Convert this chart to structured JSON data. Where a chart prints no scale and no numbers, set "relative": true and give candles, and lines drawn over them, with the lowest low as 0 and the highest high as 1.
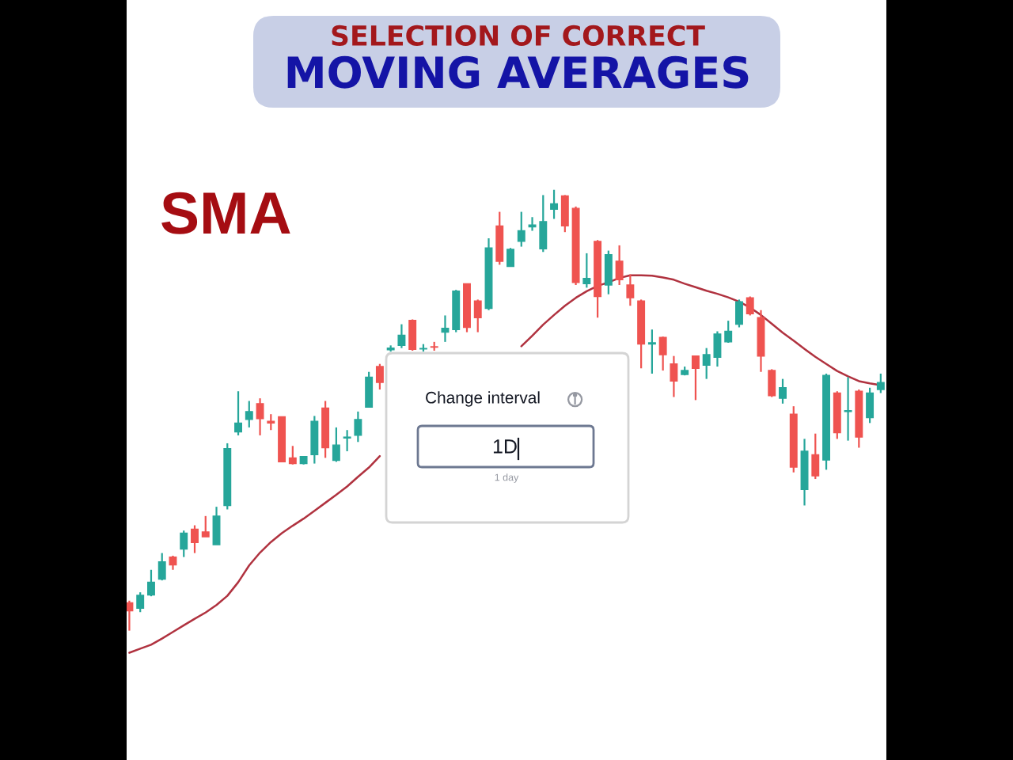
{
  "chart_data": {
    "type": "candlestick",
    "title": "SELECTION OF CORRECT",
    "subtitle": "MOVING AVERAGES",
    "annotations": [
      "SMA",
      "Change interval",
      "1D",
      "1 day"
    ],
    "relative": true,
    "categories": [
      null,
      null,
      null,
      null,
      null,
      null,
      null,
      null,
      null,
      null,
      null,
      null,
      null,
      null,
      null,
      null,
      null,
      null,
      null,
      null,
      null,
      null,
      null,
      null,
      null,
      null,
      null,
      null,
      null,
      null,
      null,
      null,
      null,
      null,
      null,
      null,
      null,
      null,
      null,
      null,
      null,
      null,
      null,
      null,
      null,
      null,
      null,
      null,
      null,
      null,
      null,
      null,
      null,
      null,
      null,
      null,
      null,
      null,
      null,
      null,
      null,
      null,
      null,
      null,
      null,
      null,
      null,
      null,
      null,
      null
    ],
    "ohlc": [
      [
        0.063,
        0.068,
        0,
        0.045
      ],
      [
        0.051,
        0.087,
        0.042,
        0.08
      ],
      [
        0.081,
        0.138,
        0.078,
        0.11
      ],
      [
        0.117,
        0.176,
        0.114,
        0.156
      ],
      [
        0.167,
        0.17,
        0.138,
        0.149
      ],
      [
        0.185,
        0.227,
        0.167,
        0.221
      ],
      [
        0.23,
        0.239,
        0.176,
        0.2
      ],
      [
        0.224,
        0.26,
        0.213,
        0.213
      ],
      [
        0.195,
        0.281,
        0.195,
        0.26
      ],
      [
        0.284,
        0.425,
        0.275,
        0.413
      ],
      [
        0.451,
        0.543,
        0.443,
        0.471
      ],
      [
        0.479,
        0.521,
        0.461,
        0.497
      ],
      [
        0.515,
        0.527,
        0.443,
        0.481
      ],
      [
        0.475,
        0.491,
        0.455,
        0.471
      ],
      [
        0.485,
        0.485,
        0.383,
        0.383
      ],
      [
        0.392,
        0.419,
        0.377,
        0.379
      ],
      [
        0.379,
        0.395,
        0.377,
        0.395
      ],
      [
        0.399,
        0.487,
        0.379,
        0.475
      ],
      [
        0.505,
        0.521,
        0.392,
        0.415
      ],
      [
        0.386,
        0.461,
        0.383,
        0.421
      ],
      [
        0.437,
        0.455,
        0.407,
        0.439
      ],
      [
        0.443,
        0.497,
        0.428,
        0.479
      ],
      [
        0.507,
        0.587,
        0.507,
        0.575
      ],
      [
        0.599,
        0.605,
        0.547,
        0.563
      ],
      [
        0.637,
        0.647,
        0.633,
        0.641
      ],
      [
        0.647,
        0.695,
        0.641,
        0.67
      ],
      [
        0.704,
        0.706,
        0.635,
        0.638
      ],
      [
        0.639,
        0.65,
        0.633,
        0.64
      ],
      [
        0.644,
        0.655,
        0.635,
        0.643
      ],
      [
        0.677,
        0.715,
        0.655,
        0.686
      ],
      [
        0.683,
        0.773,
        0.677,
        0.77
      ],
      [
        0.787,
        0.787,
        0.677,
        0.688
      ],
      [
        0.748,
        0.751,
        0.677,
        0.71
      ],
      [
        0.731,
        0.89,
        0.727,
        0.868
      ],
      [
        0.918,
        0.95,
        0.83,
        0.838
      ],
      [
        0.826,
        0.868,
        0.826,
        0.865
      ],
      [
        0.883,
        0.95,
        0.871,
        0.907
      ],
      [
        0.916,
        0.938,
        0.907,
        0.92
      ],
      [
        0.866,
        0.988,
        0.859,
        0.928
      ],
      [
        0.956,
        1,
        0.934,
        0.968
      ],
      [
        0.986,
        0.988,
        0.904,
        0.918
      ],
      [
        0.958,
        0.962,
        0.784,
        0.79
      ],
      [
        0.787,
        0.856,
        0.778,
        0.799
      ],
      [
        0.883,
        0.886,
        0.71,
        0.758
      ],
      [
        0.784,
        0.862,
        0.763,
        0.853
      ],
      [
        0.838,
        0.874,
        0.784,
        0.796
      ],
      [
        0.784,
        0.808,
        0.737,
        0.755
      ],
      [
        0.748,
        0.751,
        0.595,
        0.65
      ],
      [
        0.65,
        0.683,
        0.583,
        0.653
      ],
      [
        0.665,
        0.667,
        0.59,
        0.626
      ],
      [
        0.605,
        0.623,
        0.53,
        0.566
      ],
      [
        0.581,
        0.599,
        0.579,
        0.59
      ],
      [
        0.623,
        0.623,
        0.523,
        0.595
      ],
      [
        0.602,
        0.641,
        0.571,
        0.626
      ],
      [
        0.62,
        0.679,
        0.599,
        0.673
      ],
      [
        0.655,
        0.703,
        0.653,
        0.679
      ],
      [
        0.695,
        0.751,
        0.688,
        0.746
      ],
      [
        0.755,
        0.758,
        0.715,
        0.719
      ],
      [
        0.71,
        0.727,
        0.587,
        0.623
      ],
      [
        0.59,
        0.593,
        0.53,
        0.533
      ],
      [
        0.527,
        0.571,
        0.515,
        0.551
      ],
      [
        0.491,
        0.509,
        0.359,
        0.371
      ],
      [
        0.32,
        0.435,
        0.284,
        0.407
      ],
      [
        0.399,
        0.447,
        0.344,
        0.351
      ],
      [
        0.387,
        0.583,
        0.365,
        0.579
      ],
      [
        0.539,
        0.543,
        0.435,
        0.449
      ],
      [
        0.497,
        0.575,
        0.431,
        0.499
      ],
      [
        0.543,
        0.547,
        0.415,
        0.439
      ],
      [
        0.483,
        0.551,
        0.471,
        0.539
      ],
      [
        0.547,
        0.583,
        0.539,
        0.563
      ]
    ],
    "colors": [
      "#ef5350",
      "#26a69a",
      "#26a69a",
      "#26a69a",
      "#ef5350",
      "#26a69a",
      "#ef5350",
      "#ef5350",
      "#26a69a",
      "#26a69a",
      "#26a69a",
      "#26a69a",
      "#ef5350",
      "#ef5350",
      "#ef5350",
      "#ef5350",
      "#26a69a",
      "#26a69a",
      "#ef5350",
      "#26a69a",
      "#26a69a",
      "#26a69a",
      "#26a69a",
      "#ef5350",
      "#26a69a",
      "#26a69a",
      "#ef5350",
      "#26a69a",
      "#ef5350",
      "#26a69a",
      "#26a69a",
      "#ef5350",
      "#ef5350",
      "#26a69a",
      "#ef5350",
      "#26a69a",
      "#26a69a",
      "#26a69a",
      "#26a69a",
      "#26a69a",
      "#ef5350",
      "#ef5350",
      "#26a69a",
      "#ef5350",
      "#26a69a",
      "#ef5350",
      "#ef5350",
      "#ef5350",
      "#26a69a",
      "#ef5350",
      "#ef5350",
      "#26a69a",
      "#ef5350",
      "#26a69a",
      "#26a69a",
      "#26a69a",
      "#26a69a",
      "#ef5350",
      "#ef5350",
      "#ef5350",
      "#26a69a",
      "#ef5350",
      "#26a69a",
      "#ef5350",
      "#26a69a",
      "#ef5350",
      "#26a69a",
      "#ef5350",
      "#26a69a",
      "#26a69a"
    ],
    "series": [
      {
        "type": "line",
        "color": "#b0323f",
        "values": [
          -0.05,
          -0.041,
          -0.032,
          -0.018,
          -0.003,
          0.012,
          0.027,
          0.041,
          0.058,
          0.079,
          0.11,
          0.148,
          0.177,
          0.201,
          0.221,
          0.238,
          0.254,
          0.272,
          0.29,
          0.308,
          0.327,
          0.349,
          0.37,
          0.396,
          null,
          null,
          null,
          null,
          null,
          null,
          null,
          null,
          null,
          null,
          null,
          null,
          0.645,
          0.669,
          0.694,
          0.716,
          0.737,
          0.755,
          0.77,
          0.782,
          0.79,
          0.8,
          0.806,
          0.806,
          0.805,
          0.801,
          0.796,
          0.787,
          0.779,
          0.771,
          0.764,
          0.756,
          0.746,
          0.733,
          0.716,
          0.696,
          0.676,
          0.658,
          0.639,
          0.621,
          0.605,
          0.589,
          0.577,
          0.566,
          0.561,
          0.557
        ]
      }
    ]
  }
}
